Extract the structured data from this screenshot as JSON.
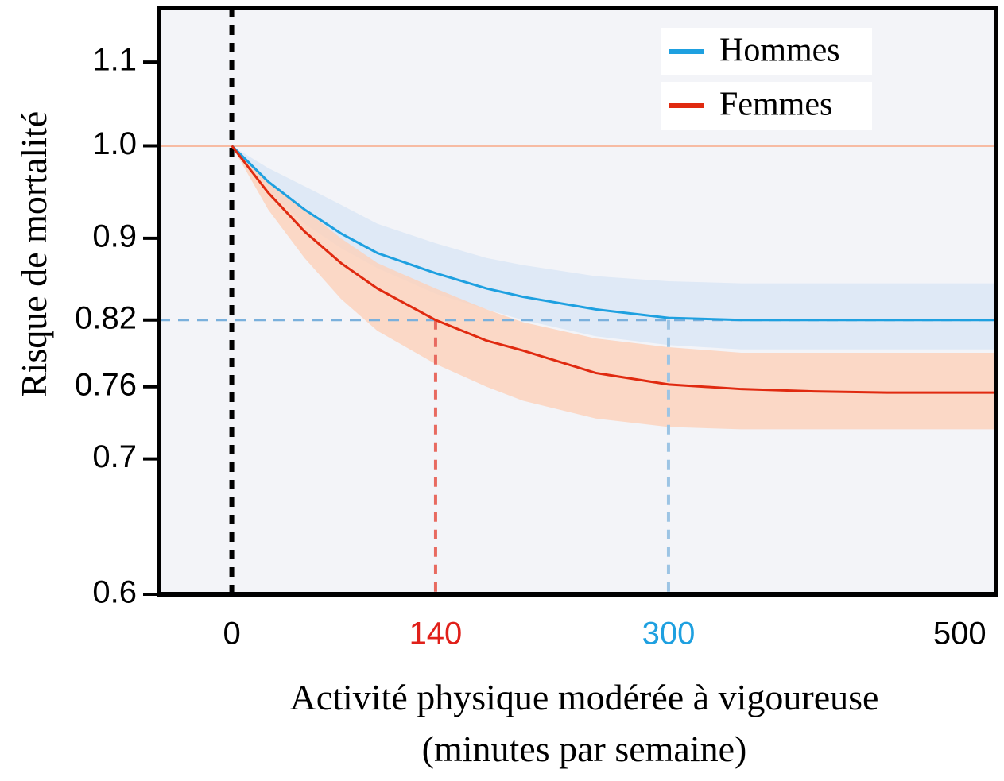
{
  "chart_data": {
    "type": "line",
    "ylabel": "Risque de mortalité",
    "xlabel": [
      "Activité physique modérée à vigoureuse",
      "(minutes par semaine)"
    ],
    "x": [
      0,
      25,
      50,
      75,
      100,
      140,
      175,
      200,
      250,
      300,
      350,
      400,
      450,
      500,
      525
    ],
    "series": [
      {
        "name": "Hommes",
        "color": "#1ea0e0",
        "band_color": "#dbe6f6",
        "values": [
          1.0,
          0.96,
          0.93,
          0.905,
          0.885,
          0.865,
          0.85,
          0.842,
          0.83,
          0.822,
          0.82,
          0.82,
          0.82,
          0.82,
          0.82
        ],
        "upper": [
          1.0,
          0.975,
          0.955,
          0.935,
          0.915,
          0.895,
          0.88,
          0.873,
          0.862,
          0.857,
          0.855,
          0.855,
          0.855,
          0.855,
          0.855
        ],
        "lower": [
          1.0,
          0.95,
          0.915,
          0.89,
          0.87,
          0.845,
          0.83,
          0.82,
          0.805,
          0.797,
          0.793,
          0.793,
          0.793,
          0.793,
          0.793
        ]
      },
      {
        "name": "Femmes",
        "color": "#e02a10",
        "band_color": "#fbd2bd",
        "values": [
          1.0,
          0.948,
          0.907,
          0.875,
          0.85,
          0.82,
          0.801,
          0.792,
          0.772,
          0.762,
          0.758,
          0.756,
          0.755,
          0.755,
          0.755
        ],
        "upper": [
          1.0,
          0.96,
          0.93,
          0.9,
          0.875,
          0.85,
          0.83,
          0.818,
          0.803,
          0.795,
          0.79,
          0.79,
          0.79,
          0.79,
          0.79
        ],
        "lower": [
          1.0,
          0.93,
          0.88,
          0.84,
          0.81,
          0.78,
          0.76,
          0.748,
          0.733,
          0.726,
          0.724,
          0.724,
          0.724,
          0.724,
          0.724
        ]
      }
    ],
    "xlim": [
      -50,
      525
    ],
    "ylim": [
      0.6,
      1.17
    ],
    "yscale": "log",
    "xticks": [
      0,
      140,
      300,
      500
    ],
    "xtick_colors": [
      "#000000",
      "#e0201a",
      "#1ea0e0",
      "#000000"
    ],
    "yticks": [
      0.6,
      0.7,
      0.76,
      0.82,
      0.9,
      {
        "value": 1,
        "label": "1.0"
      },
      1.1
    ],
    "hlines": [
      {
        "y": 1,
        "color": "#f7bba3",
        "dashed": false
      },
      {
        "y": 0.82,
        "color": "#7ab0dc",
        "dashed": true
      }
    ],
    "vlines": [
      {
        "x": 0,
        "color": "#000000",
        "width": 6
      },
      {
        "x": 140,
        "top": 0.82,
        "color": "#e86a60",
        "width": 4
      },
      {
        "x": 300,
        "top": 0.82,
        "color": "#9cc4e4",
        "width": 4
      }
    ],
    "legend": "upper right"
  }
}
